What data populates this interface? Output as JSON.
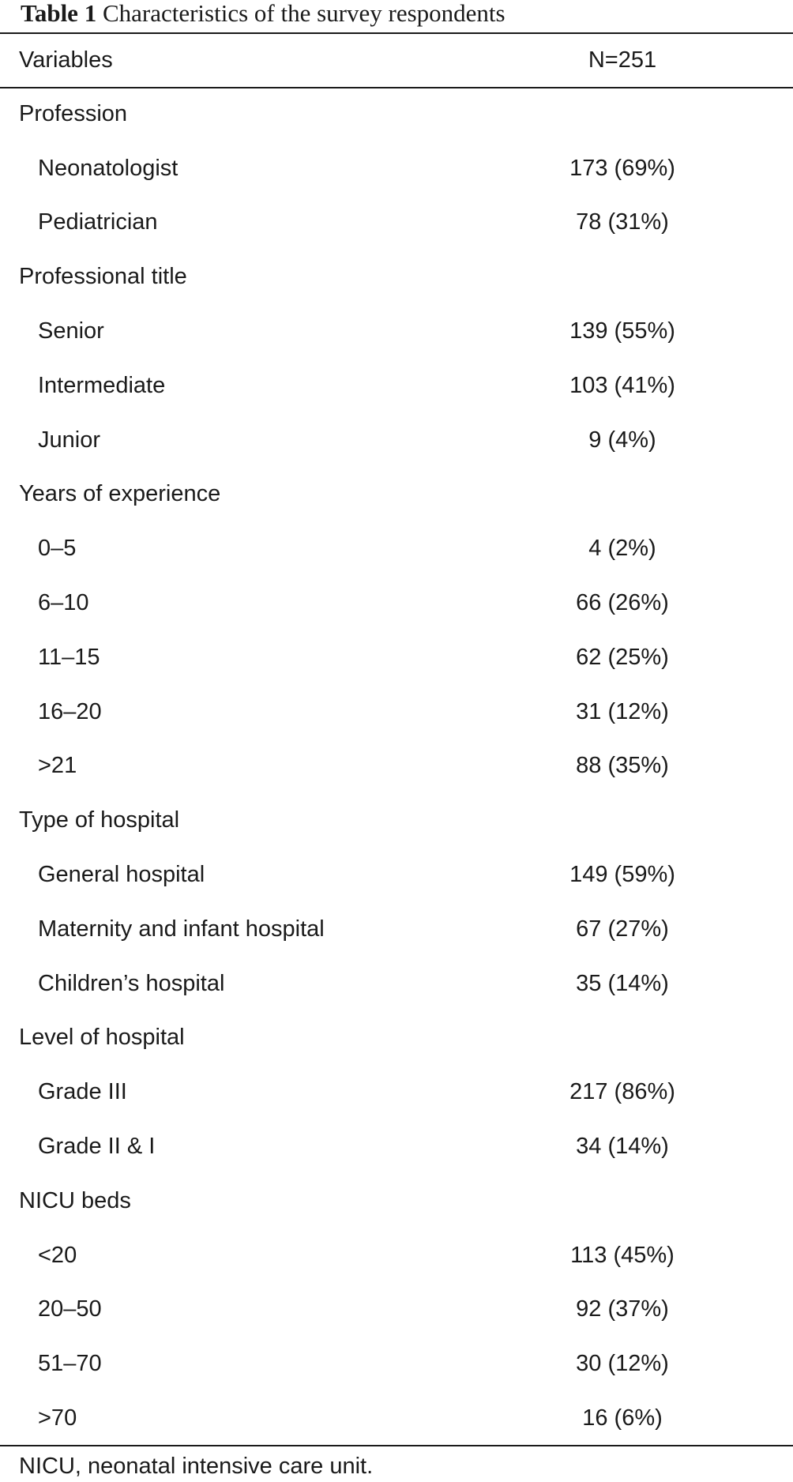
{
  "caption": {
    "label": "Table 1",
    "text": "Characteristics of the survey respondents"
  },
  "table": {
    "header": {
      "variable": "Variables",
      "value": "N=251"
    },
    "rows": [
      {
        "label": "Profession",
        "value": "",
        "type": "group"
      },
      {
        "label": "Neonatologist",
        "value": "173 (69%)",
        "type": "sub"
      },
      {
        "label": "Pediatrician",
        "value": "78 (31%)",
        "type": "sub"
      },
      {
        "label": "Professional title",
        "value": "",
        "type": "group"
      },
      {
        "label": "Senior",
        "value": "139 (55%)",
        "type": "sub"
      },
      {
        "label": "Intermediate",
        "value": "103 (41%)",
        "type": "sub"
      },
      {
        "label": "Junior",
        "value": "9 (4%)",
        "type": "sub"
      },
      {
        "label": "Years of experience",
        "value": "",
        "type": "group"
      },
      {
        "label": "0–5",
        "value": "4 (2%)",
        "type": "sub"
      },
      {
        "label": "6–10",
        "value": "66 (26%)",
        "type": "sub"
      },
      {
        "label": "11–15",
        "value": "62 (25%)",
        "type": "sub"
      },
      {
        "label": "16–20",
        "value": "31 (12%)",
        "type": "sub"
      },
      {
        "label": ">21",
        "value": "88 (35%)",
        "type": "sub"
      },
      {
        "label": "Type of hospital",
        "value": "",
        "type": "group"
      },
      {
        "label": "General hospital",
        "value": "149 (59%)",
        "type": "sub"
      },
      {
        "label": "Maternity and infant hospital",
        "value": "67 (27%)",
        "type": "sub"
      },
      {
        "label": "Children’s hospital",
        "value": "35 (14%)",
        "type": "sub"
      },
      {
        "label": "Level of hospital",
        "value": "",
        "type": "group"
      },
      {
        "label": "Grade III",
        "value": "217 (86%)",
        "type": "sub"
      },
      {
        "label": "Grade II & I",
        "value": "34 (14%)",
        "type": "sub"
      },
      {
        "label": "NICU beds",
        "value": "",
        "type": "group"
      },
      {
        "label": "<20",
        "value": "113 (45%)",
        "type": "sub"
      },
      {
        "label": "20–50",
        "value": "92 (37%)",
        "type": "sub"
      },
      {
        "label": "51–70",
        "value": "30 (12%)",
        "type": "sub"
      },
      {
        "label": ">70",
        "value": "16 (6%)",
        "type": "sub"
      }
    ]
  },
  "footnote": "NICU, neonatal intensive care unit."
}
